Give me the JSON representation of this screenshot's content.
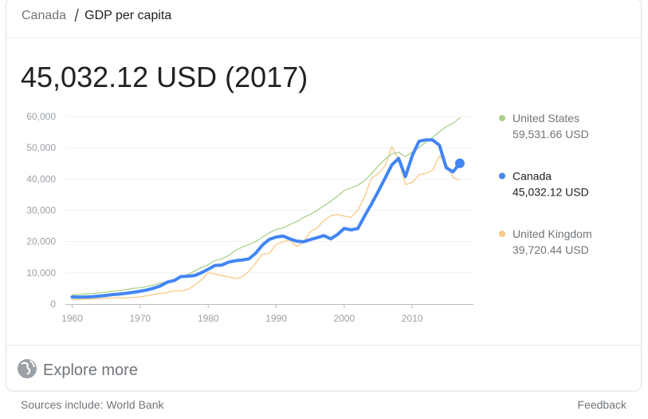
{
  "breadcrumb": [
    "Canada",
    "GDP per capita"
  ],
  "headline": "45,032.12 USD (2017)",
  "explore": "Explore more",
  "footer": {
    "sources": "Sources include: World Bank",
    "feedback": "Feedback"
  },
  "chart_data": {
    "type": "line",
    "x": [
      1960,
      1961,
      1962,
      1963,
      1964,
      1965,
      1966,
      1967,
      1968,
      1969,
      1970,
      1971,
      1972,
      1973,
      1974,
      1975,
      1976,
      1977,
      1978,
      1979,
      1980,
      1981,
      1982,
      1983,
      1984,
      1985,
      1986,
      1987,
      1988,
      1989,
      1990,
      1991,
      1992,
      1993,
      1994,
      1995,
      1996,
      1997,
      1998,
      1999,
      2000,
      2001,
      2002,
      2003,
      2004,
      2005,
      2006,
      2007,
      2008,
      2009,
      2010,
      2011,
      2012,
      2013,
      2014,
      2015,
      2016,
      2017
    ],
    "xlim": [
      1959,
      2019
    ],
    "xticks": [
      1960,
      1970,
      1980,
      1990,
      2000,
      2010
    ],
    "ylim": [
      0,
      60000
    ],
    "yticks": [
      0,
      {
        "value": 10000,
        "label": "10,000"
      },
      {
        "value": 20000,
        "label": "20,000"
      },
      {
        "value": 30000,
        "label": "30,000"
      },
      {
        "value": 40000,
        "label": "40,000"
      },
      {
        "value": 50000,
        "label": "50,000"
      },
      {
        "value": 60000,
        "label": "60,000"
      }
    ],
    "grid": true,
    "series": [
      {
        "name": "United States",
        "color": "#a8d08d",
        "legend_value": "59,531.66 USD",
        "values": [
          3007,
          3067,
          3244,
          3375,
          3574,
          3828,
          4146,
          4336,
          4696,
          5032,
          5234,
          5609,
          6094,
          6726,
          7226,
          7801,
          8592,
          9453,
          10565,
          11674,
          12575,
          13976,
          14434,
          15544,
          17121,
          18237,
          19071,
          20039,
          21417,
          22857,
          23889,
          24342,
          25419,
          26387,
          27695,
          28691,
          29968,
          31459,
          32854,
          34515,
          36335,
          37133,
          38023,
          39497,
          41712,
          44115,
          46299,
          48050,
          48570,
          47195,
          48651,
          50066,
          51784,
          53291,
          55124,
          56763,
          57867,
          59531.66
        ]
      },
      {
        "name": "Canada",
        "color": "#4285f4",
        "legend_value": "45,032.12 USD",
        "values": [
          2259,
          2240,
          2269,
          2374,
          2555,
          2770,
          3047,
          3217,
          3462,
          3764,
          4122,
          4520,
          5089,
          5838,
          7033,
          7511,
          8809,
          8919,
          9124,
          10044,
          11135,
          12337,
          12482,
          13425,
          13877,
          14115,
          14461,
          16309,
          18937,
          20716,
          21448,
          21768,
          20879,
          20121,
          19935,
          20614,
          21227,
          21902,
          20872,
          22238,
          24190,
          23738,
          24168,
          28200,
          31988,
          36028,
          40243,
          44544,
          46595,
          40773,
          47450,
          52101,
          52542,
          52504,
          50835,
          43596,
          42316,
          45032.12
        ]
      },
      {
        "name": "United Kingdom",
        "color": "#f9c784",
        "legend_value": "39,720.44 USD",
        "values": [
          1398,
          1472,
          1526,
          1613,
          1748,
          1875,
          1987,
          2058,
          1952,
          2101,
          2348,
          2650,
          3030,
          3426,
          3666,
          4300,
          4138,
          4681,
          5977,
          7805,
          10032,
          9600,
          9146,
          8692,
          8179,
          8652,
          10611,
          13119,
          15987,
          16239,
          19095,
          19901,
          20487,
          18389,
          19709,
          23123,
          24332,
          26734,
          28214,
          28670,
          28150,
          27744,
          30077,
          34420,
          40290,
          41733,
          44252,
          50397,
          46257,
          38227,
          38893,
          41412,
          41791,
          42724,
          47440,
          44966,
          40542,
          39720.44
        ]
      }
    ]
  }
}
